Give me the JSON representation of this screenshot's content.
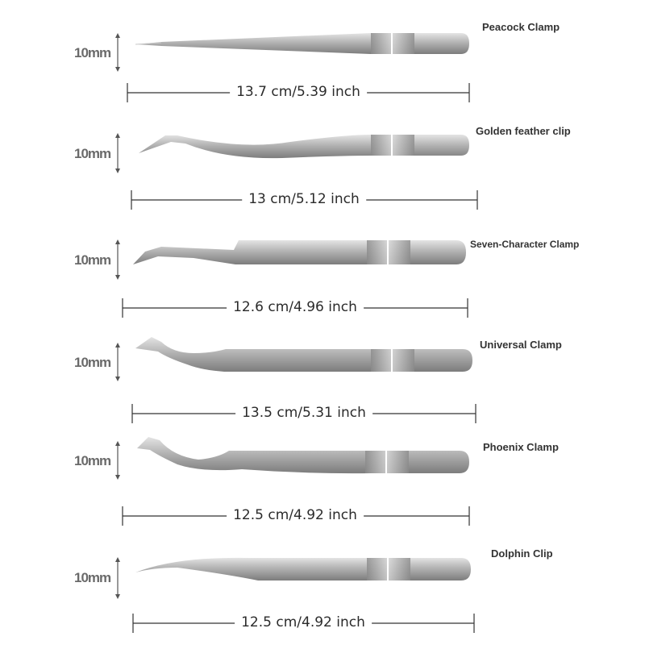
{
  "items": [
    {
      "name": "Peacock Clamp",
      "height": "10mm",
      "length": "13.7 cm/5.39 inch"
    },
    {
      "name": "Golden feather clip",
      "height": "10mm",
      "length": "13 cm/5.12 inch"
    },
    {
      "name": "Seven-Character Clamp",
      "height": "10mm",
      "length": "12.6 cm/4.96 inch"
    },
    {
      "name": "Universal Clamp",
      "height": "10mm",
      "length": "13.5 cm/5.31 inch"
    },
    {
      "name": "Phoenix Clamp",
      "height": "10mm",
      "length": "12.5 cm/4.92 inch"
    },
    {
      "name": "Dolphin Clip",
      "height": "10mm",
      "length": "12.5 cm/4.92 inch"
    }
  ],
  "colors": {
    "metal_light": "#d9d9d9",
    "metal_mid": "#a9a9a9",
    "metal_dark": "#6f6f6f",
    "line": "#333333"
  }
}
